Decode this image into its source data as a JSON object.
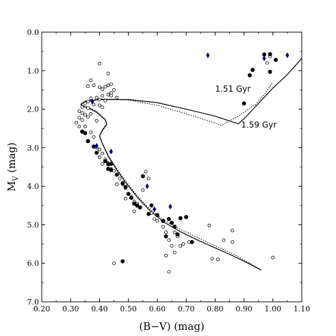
{
  "chart_data": {
    "type": "scatter",
    "xlabel": "(B−V) (mag)",
    "ylabel_main": "M",
    "ylabel_sub": "V",
    "ylabel_unit": " (mag)",
    "xlim": [
      0.2,
      1.1
    ],
    "ylim": [
      7.0,
      0.0
    ],
    "y_inverted": true,
    "grid": false,
    "x_ticks": [
      0.2,
      0.3,
      0.4,
      0.5,
      0.6,
      0.7,
      0.8,
      0.9,
      1.0,
      1.1
    ],
    "x_tick_labels": [
      "0.20",
      "0.30",
      "0.40",
      "0.50",
      "0.60",
      "0.70",
      "0.80",
      "0.90",
      "1.00",
      "1.10"
    ],
    "y_ticks": [
      0,
      1,
      2,
      3,
      4,
      5,
      6,
      7
    ],
    "y_tick_labels": [
      "0.0",
      "1.0",
      "2.0",
      "3.0",
      "4.0",
      "5.0",
      "6.0",
      "7.0"
    ],
    "annotations": [
      {
        "text": "1.51 Gyr",
        "x": 0.8,
        "y": 1.55
      },
      {
        "text": "1.59 Gyr",
        "x": 0.89,
        "y": 2.48
      }
    ],
    "series": [
      {
        "marker": "open-circle",
        "color": "#000000",
        "points": [
          [
            0.4,
            0.82
          ],
          [
            0.43,
            1.07
          ],
          [
            0.37,
            1.25
          ],
          [
            0.36,
            1.4
          ],
          [
            0.38,
            1.38
          ],
          [
            0.4,
            1.43
          ],
          [
            0.41,
            1.48
          ],
          [
            0.42,
            1.42
          ],
          [
            0.43,
            1.38
          ],
          [
            0.44,
            1.35
          ],
          [
            0.45,
            1.5
          ],
          [
            0.44,
            1.58
          ],
          [
            0.43,
            1.62
          ],
          [
            0.41,
            1.65
          ],
          [
            0.39,
            1.7
          ],
          [
            0.37,
            1.72
          ],
          [
            0.4,
            1.75
          ],
          [
            0.42,
            1.78
          ],
          [
            0.36,
            1.8
          ],
          [
            0.35,
            1.85
          ],
          [
            0.38,
            1.88
          ],
          [
            0.4,
            1.9
          ],
          [
            0.41,
            1.95
          ],
          [
            0.34,
            1.95
          ],
          [
            0.36,
            1.97
          ],
          [
            0.33,
            2.05
          ],
          [
            0.34,
            2.1
          ],
          [
            0.35,
            2.15
          ],
          [
            0.37,
            2.12
          ],
          [
            0.36,
            2.2
          ],
          [
            0.33,
            2.22
          ],
          [
            0.34,
            2.28
          ],
          [
            0.32,
            2.35
          ],
          [
            0.33,
            2.45
          ],
          [
            0.35,
            2.45
          ],
          [
            0.44,
            1.65
          ],
          [
            0.46,
            1.7
          ],
          [
            0.39,
            2.3
          ],
          [
            0.37,
            2.6
          ],
          [
            0.38,
            2.72
          ],
          [
            0.39,
            3.0
          ],
          [
            0.4,
            3.05
          ],
          [
            0.41,
            3.15
          ],
          [
            0.4,
            3.25
          ],
          [
            0.42,
            3.3
          ],
          [
            0.41,
            3.42
          ],
          [
            0.43,
            3.4
          ],
          [
            0.44,
            3.55
          ],
          [
            0.45,
            3.6
          ],
          [
            0.46,
            3.7
          ],
          [
            0.47,
            3.8
          ],
          [
            0.48,
            3.95
          ],
          [
            0.49,
            4.05
          ],
          [
            0.5,
            4.2
          ],
          [
            0.49,
            4.32
          ],
          [
            0.51,
            4.28
          ],
          [
            0.52,
            4.4
          ],
          [
            0.53,
            4.45
          ],
          [
            0.54,
            4.55
          ],
          [
            0.56,
            3.62
          ],
          [
            0.57,
            3.8
          ],
          [
            0.58,
            4.7
          ],
          [
            0.59,
            4.85
          ],
          [
            0.6,
            4.9
          ],
          [
            0.62,
            5.05
          ],
          [
            0.63,
            5.2
          ],
          [
            0.64,
            5.4
          ],
          [
            0.65,
            5.55
          ],
          [
            0.66,
            5.2
          ],
          [
            0.67,
            5.3
          ],
          [
            0.68,
            5.55
          ],
          [
            0.69,
            5.5
          ],
          [
            0.71,
            5.45
          ],
          [
            0.63,
            5.8
          ],
          [
            0.64,
            6.22
          ],
          [
            0.66,
            5.72
          ],
          [
            0.78,
            5.02
          ],
          [
            0.79,
            5.88
          ],
          [
            0.81,
            5.9
          ],
          [
            0.83,
            5.4
          ],
          [
            0.86,
            5.15
          ],
          [
            0.86,
            5.45
          ],
          [
            0.45,
            6.0
          ],
          [
            0.97,
            0.58
          ],
          [
            0.99,
            0.63
          ],
          [
            0.98,
            0.8
          ],
          [
            1.0,
            5.85
          ],
          [
            0.55,
            4.1
          ],
          [
            0.52,
            4.65
          ],
          [
            0.46,
            3.95
          ]
        ]
      },
      {
        "marker": "filled-circle",
        "color": "#000000",
        "points": [
          [
            0.97,
            0.58
          ],
          [
            0.99,
            0.57
          ],
          [
            1.01,
            0.72
          ],
          [
            0.93,
            0.98
          ],
          [
            0.92,
            1.12
          ],
          [
            0.9,
            1.85
          ],
          [
            0.99,
            1.03
          ],
          [
            0.34,
            2.58
          ],
          [
            0.35,
            2.62
          ],
          [
            0.36,
            2.83
          ],
          [
            0.38,
            2.97
          ],
          [
            0.39,
            3.13
          ],
          [
            0.42,
            3.35
          ],
          [
            0.43,
            3.43
          ],
          [
            0.44,
            3.42
          ],
          [
            0.44,
            3.58
          ],
          [
            0.46,
            3.7
          ],
          [
            0.48,
            3.92
          ],
          [
            0.49,
            4.02
          ],
          [
            0.5,
            4.2
          ],
          [
            0.51,
            4.3
          ],
          [
            0.52,
            4.45
          ],
          [
            0.53,
            4.5
          ],
          [
            0.54,
            4.55
          ],
          [
            0.55,
            3.74
          ],
          [
            0.57,
            4.72
          ],
          [
            0.58,
            4.5
          ],
          [
            0.6,
            4.75
          ],
          [
            0.62,
            4.9
          ],
          [
            0.63,
            5.3
          ],
          [
            0.64,
            4.85
          ],
          [
            0.65,
            4.95
          ],
          [
            0.66,
            5.05
          ],
          [
            0.67,
            5.25
          ],
          [
            0.68,
            4.83
          ],
          [
            0.7,
            4.8
          ],
          [
            0.72,
            5.45
          ],
          [
            0.48,
            5.95
          ],
          [
            0.43,
            3.55
          ]
        ]
      },
      {
        "marker": "blue-diamond",
        "color": "#00008b",
        "points": [
          [
            0.375,
            1.8
          ],
          [
            0.39,
            2.95
          ],
          [
            0.44,
            3.1
          ],
          [
            0.565,
            4.0
          ],
          [
            0.59,
            4.6
          ],
          [
            0.645,
            4.53
          ],
          [
            0.775,
            0.6
          ],
          [
            0.97,
            0.68
          ],
          [
            1.05,
            0.6
          ]
        ]
      }
    ],
    "lines": [
      {
        "style": "solid",
        "points": [
          [
            0.96,
            6.18
          ],
          [
            0.92,
            6.02
          ],
          [
            0.86,
            5.8
          ],
          [
            0.8,
            5.6
          ],
          [
            0.74,
            5.4
          ],
          [
            0.68,
            5.18
          ],
          [
            0.62,
            4.92
          ],
          [
            0.57,
            4.6
          ],
          [
            0.53,
            4.28
          ],
          [
            0.49,
            3.9
          ],
          [
            0.46,
            3.58
          ],
          [
            0.43,
            3.22
          ],
          [
            0.41,
            2.9
          ],
          [
            0.4,
            2.7
          ],
          [
            0.41,
            2.55
          ],
          [
            0.425,
            2.4
          ],
          [
            0.42,
            2.28
          ],
          [
            0.405,
            2.18
          ],
          [
            0.39,
            2.08
          ],
          [
            0.37,
            2.0
          ],
          [
            0.345,
            1.93
          ],
          [
            0.335,
            1.88
          ],
          [
            0.35,
            1.8
          ],
          [
            0.4,
            1.75
          ],
          [
            0.5,
            1.75
          ],
          [
            0.6,
            1.83
          ],
          [
            0.7,
            2.0
          ],
          [
            0.8,
            2.18
          ],
          [
            0.88,
            2.38
          ],
          [
            0.9,
            2.25
          ],
          [
            0.95,
            1.85
          ],
          [
            1.0,
            1.45
          ],
          [
            1.05,
            1.1
          ],
          [
            1.1,
            0.68
          ]
        ]
      },
      {
        "style": "dotted",
        "points": [
          [
            0.96,
            6.18
          ],
          [
            0.92,
            6.0
          ],
          [
            0.86,
            5.75
          ],
          [
            0.8,
            5.55
          ],
          [
            0.74,
            5.33
          ],
          [
            0.68,
            5.12
          ],
          [
            0.62,
            4.87
          ],
          [
            0.57,
            4.56
          ],
          [
            0.53,
            4.24
          ],
          [
            0.49,
            3.86
          ],
          [
            0.46,
            3.55
          ],
          [
            0.43,
            3.2
          ],
          [
            0.41,
            2.88
          ],
          [
            0.4,
            2.68
          ],
          [
            0.41,
            2.52
          ],
          [
            0.425,
            2.38
          ],
          [
            0.42,
            2.26
          ],
          [
            0.405,
            2.16
          ],
          [
            0.39,
            2.06
          ],
          [
            0.37,
            1.98
          ],
          [
            0.345,
            1.91
          ],
          [
            0.335,
            1.86
          ],
          [
            0.35,
            1.78
          ],
          [
            0.4,
            1.73
          ],
          [
            0.5,
            1.76
          ],
          [
            0.6,
            1.9
          ],
          [
            0.7,
            2.12
          ],
          [
            0.8,
            2.36
          ],
          [
            0.82,
            2.42
          ],
          [
            0.88,
            2.18
          ],
          [
            0.94,
            1.88
          ],
          [
            0.97,
            1.62
          ],
          [
            1.0,
            1.3
          ]
        ]
      }
    ]
  }
}
